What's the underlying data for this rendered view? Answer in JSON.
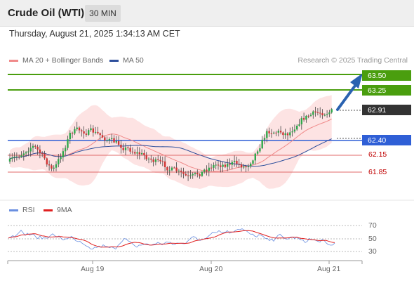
{
  "header": {
    "title": "Crude Oil (WTI)",
    "timeframe": "30 MIN",
    "timestamp": "Thursday, August 21, 2025 1:34:13 AM CET"
  },
  "legend": {
    "ma20_label": "MA 20 + Bollinger Bands",
    "ma50_label": "MA 50",
    "credit": "Research © 2025 Trading Central"
  },
  "levels": {
    "resistance_2": "63.50",
    "resistance_1": "63.25",
    "current": "62.91",
    "pivot": "62.40",
    "support_1": "62.15",
    "support_2": "61.85"
  },
  "rsi_panel": {
    "rsi_label": "RSI",
    "ma_label": "9MA",
    "ticks": [
      "70",
      "50",
      "30"
    ]
  },
  "x_axis": {
    "dates": [
      "Aug 19",
      "Aug 20",
      "Aug 21"
    ]
  },
  "colors": {
    "resistance": "#4a9e0e",
    "pivot": "#2f5fd6",
    "support": "#e06a6a",
    "current": "#333333",
    "arrow": "#2a62b0",
    "candle_up": "#2ea84a",
    "candle_down": "#d13535",
    "bollinger_fill": "#fde3e3",
    "ma20": "#f08a8a",
    "ma50": "#2e4f9c",
    "rsi": "#6a8fe0",
    "rsi_ma": "#e02020"
  }
}
